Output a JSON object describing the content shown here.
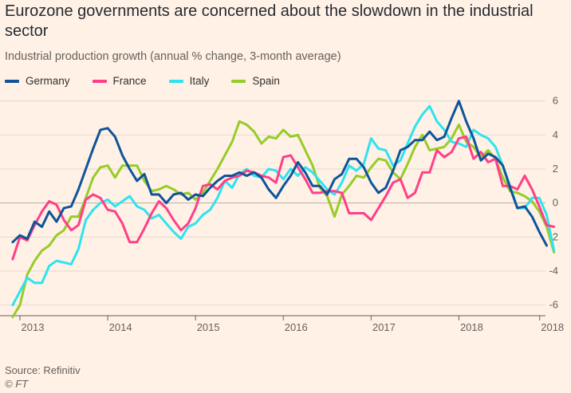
{
  "title": "Eurozone governments are concerned about the slowdown in the industrial sector",
  "subtitle": "Industrial production growth (annual % change, 3-month average)",
  "source": "Source: Refinitiv",
  "credit": "© FT",
  "chart_data": {
    "type": "line",
    "title": "Eurozone governments are concerned about the slowdown in the industrial sector",
    "subtitle": "Industrial production growth (annual % change, 3-month average)",
    "xlabel": "",
    "ylabel": "",
    "ylim": [
      -7,
      6.5
    ],
    "yticks": [
      -6,
      -4,
      -2,
      0,
      2,
      4,
      6
    ],
    "xlim": [
      2012.9,
      2018.95
    ],
    "xticks": [
      {
        "label": "2013",
        "x": 2013
      },
      {
        "label": "2014",
        "x": 2014
      },
      {
        "label": "2015",
        "x": 2015
      },
      {
        "label": "2016",
        "x": 2016
      },
      {
        "label": "2017",
        "x": 2017
      },
      {
        "label": "2018",
        "x": 2018
      },
      {
        "label": "2018",
        "x": 2018.92
      }
    ],
    "grid": true,
    "legend_position": "top-left",
    "x_start": 2012.917,
    "x_step": 0.08333,
    "series": [
      {
        "name": "Germany",
        "color": "#0f5499",
        "values": [
          -2.3,
          -1.9,
          -2.1,
          -1.1,
          -1.4,
          -0.5,
          -1.1,
          -0.3,
          -0.2,
          0.8,
          2.0,
          3.2,
          4.3,
          4.4,
          3.9,
          2.8,
          2.0,
          1.3,
          1.7,
          0.5,
          0.5,
          0.0,
          0.5,
          0.6,
          0.2,
          0.5,
          0.4,
          0.9,
          1.3,
          1.6,
          1.6,
          1.8,
          1.6,
          1.8,
          1.5,
          0.8,
          0.3,
          1.0,
          1.6,
          2.4,
          1.8,
          1.0,
          1.0,
          0.5,
          1.4,
          1.7,
          2.6,
          2.6,
          2.1,
          1.2,
          0.6,
          0.9,
          1.9,
          3.1,
          3.3,
          3.7,
          3.7,
          4.2,
          3.7,
          3.9,
          5.0,
          6.0,
          4.8,
          3.8,
          2.5,
          2.9,
          2.7,
          2.2,
          0.9,
          -0.3,
          -0.2,
          -0.8,
          -1.7,
          -2.5
        ]
      },
      {
        "name": "France",
        "color": "#ff3f87",
        "values": [
          -3.3,
          -2.0,
          -2.2,
          -1.3,
          -0.5,
          0.1,
          -0.1,
          -1.0,
          -1.6,
          -1.3,
          0.2,
          0.5,
          0.3,
          -0.4,
          -0.5,
          -1.2,
          -2.3,
          -2.3,
          -1.5,
          -0.6,
          0.1,
          -0.3,
          -1.0,
          -1.6,
          -1.2,
          -0.3,
          1.0,
          1.1,
          0.8,
          1.3,
          1.5,
          1.6,
          1.9,
          1.8,
          1.6,
          1.5,
          1.2,
          2.7,
          2.8,
          2.1,
          1.4,
          0.6,
          0.6,
          0.7,
          0.7,
          0.6,
          -0.6,
          -0.6,
          -0.6,
          -1.0,
          -0.3,
          0.4,
          1.2,
          1.4,
          0.3,
          0.6,
          1.8,
          1.8,
          3.1,
          2.7,
          3.0,
          3.8,
          3.9,
          2.6,
          3.0,
          2.4,
          2.6,
          1.0,
          1.0,
          0.8,
          1.6,
          0.8,
          -0.2,
          -1.3,
          -1.4
        ]
      },
      {
        "name": "Italy",
        "color": "#2ee3f0",
        "values": [
          -6.0,
          -5.2,
          -4.4,
          -4.7,
          -4.7,
          -3.7,
          -3.4,
          -3.5,
          -3.6,
          -2.7,
          -1.0,
          -0.4,
          0.0,
          0.2,
          -0.2,
          0.1,
          0.4,
          -0.2,
          -0.4,
          -0.9,
          -0.7,
          -1.2,
          -1.7,
          -2.1,
          -1.4,
          -1.2,
          -0.7,
          -0.4,
          0.3,
          1.3,
          0.9,
          1.7,
          2.0,
          1.6,
          1.5,
          2.0,
          1.9,
          1.4,
          2.0,
          1.6,
          2.1,
          1.8,
          1.3,
          0.8,
          0.5,
          1.2,
          2.2,
          1.9,
          2.3,
          3.8,
          3.2,
          3.1,
          2.2,
          2.5,
          3.5,
          4.5,
          5.2,
          5.7,
          4.8,
          4.3,
          3.6,
          3.5,
          3.3,
          4.3,
          4.0,
          3.8,
          3.3,
          2.2,
          1.0,
          -0.3,
          -0.3,
          0.3,
          0.3,
          -0.7,
          -2.8
        ]
      },
      {
        "name": "Spain",
        "color": "#96cc28",
        "values": [
          -6.7,
          -6.0,
          -4.2,
          -3.4,
          -2.8,
          -2.5,
          -1.9,
          -1.6,
          -0.8,
          -0.8,
          0.3,
          1.5,
          2.1,
          2.2,
          1.5,
          2.2,
          2.2,
          2.2,
          1.3,
          0.7,
          0.8,
          1.0,
          0.8,
          0.5,
          0.6,
          0.2,
          0.6,
          1.3,
          2.0,
          2.8,
          3.6,
          4.8,
          4.6,
          4.2,
          3.5,
          3.9,
          3.8,
          4.3,
          3.9,
          4.0,
          3.1,
          2.2,
          0.9,
          0.4,
          -0.8,
          0.5,
          1.0,
          1.6,
          1.5,
          2.1,
          2.6,
          2.5,
          1.8,
          1.4,
          2.3,
          3.3,
          4.0,
          3.1,
          3.2,
          3.3,
          3.8,
          4.6,
          3.6,
          3.3,
          2.7,
          3.1,
          2.6,
          1.5,
          0.7,
          0.6,
          0.4,
          0.1,
          -0.5,
          -1.4,
          -2.9
        ]
      }
    ]
  }
}
